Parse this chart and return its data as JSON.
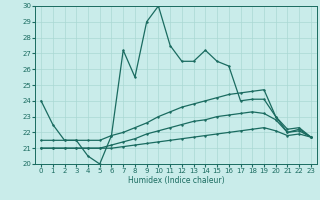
{
  "title": "",
  "xlabel": "Humidex (Indice chaleur)",
  "xlim": [
    -0.5,
    23.5
  ],
  "ylim": [
    20,
    30
  ],
  "yticks": [
    20,
    21,
    22,
    23,
    24,
    25,
    26,
    27,
    28,
    29,
    30
  ],
  "xticks": [
    0,
    1,
    2,
    3,
    4,
    5,
    6,
    7,
    8,
    9,
    10,
    11,
    12,
    13,
    14,
    15,
    16,
    17,
    18,
    19,
    20,
    21,
    22,
    23
  ],
  "bg_color": "#c9ecea",
  "grid_color": "#aad8d4",
  "line_color": "#1a6b60",
  "series": {
    "main": [
      24.0,
      22.5,
      21.5,
      21.5,
      20.5,
      20.0,
      21.8,
      27.2,
      25.5,
      29.0,
      30.0,
      27.5,
      26.5,
      26.5,
      27.2,
      26.5,
      26.2,
      24.0,
      24.1,
      24.1,
      23.0,
      22.0,
      22.2,
      21.7
    ],
    "upper": [
      21.5,
      21.5,
      21.5,
      21.5,
      21.5,
      21.5,
      21.8,
      22.0,
      22.3,
      22.6,
      23.0,
      23.3,
      23.6,
      23.8,
      24.0,
      24.2,
      24.4,
      24.5,
      24.6,
      24.7,
      23.0,
      22.2,
      22.3,
      21.7
    ],
    "mid": [
      21.0,
      21.0,
      21.0,
      21.0,
      21.0,
      21.0,
      21.2,
      21.4,
      21.6,
      21.9,
      22.1,
      22.3,
      22.5,
      22.7,
      22.8,
      23.0,
      23.1,
      23.2,
      23.3,
      23.2,
      22.8,
      22.0,
      22.1,
      21.7
    ],
    "lower": [
      21.0,
      21.0,
      21.0,
      21.0,
      21.0,
      21.0,
      21.0,
      21.1,
      21.2,
      21.3,
      21.4,
      21.5,
      21.6,
      21.7,
      21.8,
      21.9,
      22.0,
      22.1,
      22.2,
      22.3,
      22.1,
      21.8,
      21.9,
      21.7
    ]
  }
}
